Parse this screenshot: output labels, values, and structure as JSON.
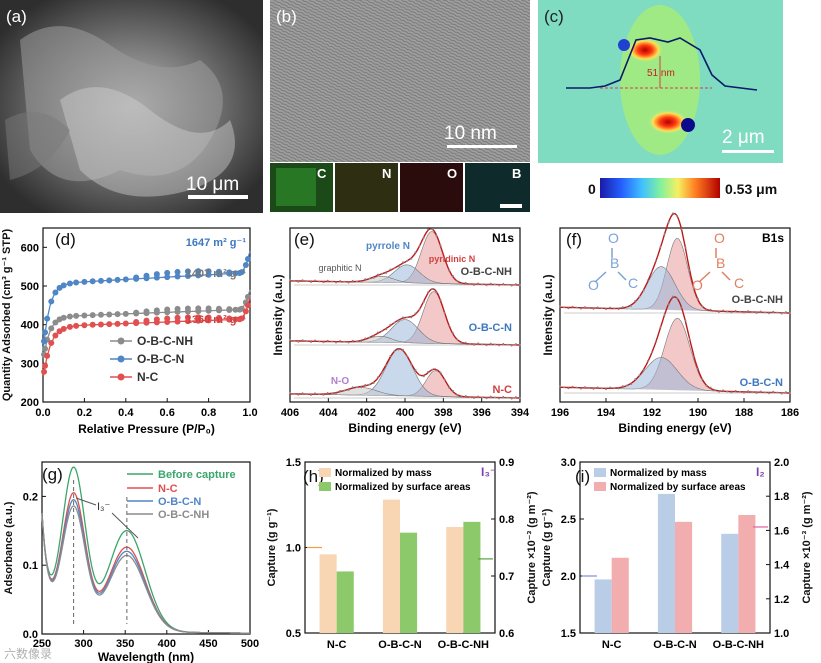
{
  "panels": {
    "a": {
      "letter": "(a)",
      "scalebar": "10 μm"
    },
    "b": {
      "letter": "(b)",
      "scalebar": "10 nm",
      "maps": [
        "C",
        "N",
        "O",
        "B"
      ]
    },
    "c": {
      "letter": "(c)",
      "height_label": "51 nm",
      "scalebar": "2 μm",
      "cbar_min": "0",
      "cbar_max": "0.53 μm"
    },
    "d": {
      "letter": "(d)"
    },
    "e": {
      "letter": "(e)"
    },
    "f": {
      "letter": "(f)"
    },
    "g": {
      "letter": "(g)"
    },
    "h": {
      "letter": "(h)"
    },
    "i": {
      "letter": "(i)"
    }
  },
  "chart_data": [
    {
      "id": "d",
      "type": "scatter",
      "xlabel": "Relative Pressure (P/P₀)",
      "ylabel": "Quantity Adsorbed (cm³ g⁻¹ STP)",
      "xlim": [
        0,
        1.0
      ],
      "ylim": [
        200,
        650
      ],
      "xticks": [
        "0.0",
        "0.2",
        "0.4",
        "0.6",
        "0.8",
        "1.0"
      ],
      "yticks": [
        "200",
        "300",
        "400",
        "500",
        "600"
      ],
      "legend": [
        "O-B-C-NH",
        "O-B-C-N",
        "N-C"
      ],
      "annotations": [
        "1647 m² g⁻¹",
        "1407 m² g⁻¹",
        "1360 m² g⁻¹"
      ],
      "series": [
        {
          "name": "O-B-C-NH",
          "color": "#8c8c8c",
          "asym": 420,
          "y0": 305,
          "k": 0.03,
          "slope": 20,
          "hyst": 8,
          "tail": [
            0.95,
            470,
            1.0,
            490
          ]
        },
        {
          "name": "O-B-C-N",
          "color": "#4f86c6",
          "asym": 505,
          "y0": 330,
          "k": 0.03,
          "slope": 30,
          "hyst": 12,
          "tail": [
            0.95,
            555,
            1.0,
            590
          ]
        },
        {
          "name": "N-C",
          "color": "#e05050",
          "asym": 395,
          "y0": 260,
          "k": 0.035,
          "slope": 20,
          "hyst": 10,
          "tail": [
            0.95,
            445,
            1.0,
            470
          ]
        }
      ]
    },
    {
      "id": "e",
      "type": "line",
      "title": "N1s",
      "xlabel": "Binding energy (eV)",
      "ylabel": "Intensity (a.u.)",
      "xlim": [
        406,
        394
      ],
      "xticks": [
        "406",
        "404",
        "402",
        "400",
        "398",
        "396",
        "394"
      ],
      "annotations": [
        "pyrrole N",
        "pyridinic N",
        "graphitic N",
        "N-O"
      ],
      "series": [
        {
          "name": "O-B-C-NH",
          "peaks": [
            [
              398.6,
              1.0,
              0.55
            ],
            [
              399.9,
              0.35,
              0.65
            ],
            [
              401.2,
              0.12,
              0.6
            ]
          ]
        },
        {
          "name": "O-B-C-N",
          "peaks": [
            [
              398.5,
              1.0,
              0.55
            ],
            [
              400.0,
              0.45,
              0.7
            ],
            [
              401.3,
              0.12,
              0.6
            ]
          ]
        },
        {
          "name": "N-C",
          "peaks": [
            [
              398.4,
              0.5,
              0.5
            ],
            [
              400.3,
              0.9,
              0.7
            ],
            [
              402.3,
              0.15,
              0.8
            ]
          ]
        }
      ]
    },
    {
      "id": "f",
      "type": "line",
      "title": "B1s",
      "xlabel": "Binding energy (eV)",
      "ylabel": "Intensity (a.u.)",
      "xlim": [
        196,
        186
      ],
      "xticks": [
        "196",
        "194",
        "192",
        "190",
        "188",
        "186"
      ],
      "structure_labels": [
        "O",
        "B",
        "C",
        "O",
        "B",
        "C"
      ],
      "series": [
        {
          "name": "O-B-C-NH",
          "peaks": [
            [
              190.9,
              1.0,
              0.45
            ],
            [
              191.6,
              0.6,
              0.6
            ]
          ]
        },
        {
          "name": "O-B-C-N",
          "peaks": [
            [
              190.9,
              1.0,
              0.55
            ],
            [
              191.6,
              0.45,
              0.7
            ]
          ]
        }
      ]
    },
    {
      "id": "g",
      "type": "line",
      "xlabel": "Wavelength (nm)",
      "ylabel": "Adsorbance (a.u.)",
      "xlim": [
        250,
        500
      ],
      "ylim": [
        0,
        0.25
      ],
      "xticks": [
        "250",
        "300",
        "350",
        "400",
        "450",
        "500"
      ],
      "yticks": [
        "0.0",
        "0.1",
        "0.2"
      ],
      "annotation": "I₃⁻",
      "legend": [
        "Before capture",
        "N-C",
        "O-B-C-N",
        "O-B-C-NH"
      ],
      "series": [
        {
          "name": "Before capture",
          "color": "#3aa66b",
          "p1": 0.232,
          "p2": 0.146
        },
        {
          "name": "N-C",
          "color": "#e05050",
          "p1": 0.195,
          "p2": 0.122
        },
        {
          "name": "O-B-C-N",
          "color": "#4f86c6",
          "p1": 0.185,
          "p2": 0.116
        },
        {
          "name": "O-B-C-NH",
          "color": "#8c8c8c",
          "p1": 0.176,
          "p2": 0.11
        }
      ]
    },
    {
      "id": "h",
      "type": "bar",
      "categories": [
        "N-C",
        "O-B-C-N",
        "O-B-C-NH"
      ],
      "legend": [
        "Normalized by mass",
        "Normalized by surface areas"
      ],
      "tag": "I₃⁻",
      "ylabel": "Capture (g g⁻¹)",
      "y2label": "Capture ×10⁻³ (g m⁻²)",
      "ylim": [
        0.5,
        1.5
      ],
      "y2lim": [
        0.6,
        0.9
      ],
      "yticks": [
        "0.5",
        "1.0",
        "1.5"
      ],
      "y2ticks": [
        "0.6",
        "0.7",
        "0.8",
        "0.9"
      ],
      "series": [
        {
          "name": "Normalized by mass",
          "axis": "left",
          "color": "#f9d6b3",
          "values": [
            0.96,
            1.28,
            1.12
          ]
        },
        {
          "name": "Normalized by surface areas",
          "axis": "right",
          "color": "#8cc96b",
          "values": [
            0.708,
            0.776,
            0.795
          ]
        }
      ]
    },
    {
      "id": "i",
      "type": "bar",
      "categories": [
        "N-C",
        "O-B-C-N",
        "O-B-C-NH"
      ],
      "legend": [
        "Normalized by mass",
        "Normalized by surface areas"
      ],
      "tag": "I₂",
      "ylabel": "Capture (g g⁻¹)",
      "y2label": "Capture ×10⁻³ (g m⁻²)",
      "ylim": [
        1.5,
        3.0
      ],
      "y2lim": [
        1.0,
        2.0
      ],
      "yticks": [
        "1.5",
        "2.0",
        "2.5",
        "3.0"
      ],
      "y2ticks": [
        "1.0",
        "1.2",
        "1.4",
        "1.6",
        "1.8",
        "2.0"
      ],
      "series": [
        {
          "name": "Normalized by mass",
          "axis": "left",
          "color": "#b9cde6",
          "values": [
            1.97,
            2.72,
            2.37
          ]
        },
        {
          "name": "Normalized by surface areas",
          "axis": "right",
          "color": "#f2aeae",
          "values": [
            1.44,
            1.65,
            1.69
          ]
        }
      ]
    }
  ],
  "watermark": "六数像录"
}
